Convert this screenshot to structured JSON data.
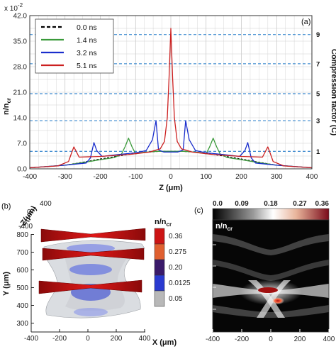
{
  "chart_data": [
    {
      "type": "line",
      "panel_label": "(a)",
      "y_multiplier": "x 10",
      "y_multiplier_exp": "-2",
      "xlabel": "Z (μm)",
      "ylabel": "n/n",
      "ylabel_sub": "cr",
      "y2label": "Compression factor (C)",
      "xlim": [
        -400,
        400
      ],
      "ylim": [
        0,
        42
      ],
      "xticks": [
        -400,
        -300,
        -200,
        -100,
        0,
        100,
        200,
        300,
        400
      ],
      "yticks": [
        0.0,
        7.0,
        14.0,
        21.0,
        28.0,
        35.0,
        42.0
      ],
      "ytick_labels": [
        "0.0",
        "7.0",
        "14.0",
        "21.0",
        "28.0",
        "35.0",
        "42.0"
      ],
      "grid": true,
      "legend_position": "top-left",
      "compression_levels": [
        {
          "label": "1",
          "y": 4.8
        },
        {
          "label": "3",
          "y": 13.2
        },
        {
          "label": "5",
          "y": 20.6
        },
        {
          "label": "7",
          "y": 28.8
        },
        {
          "label": "9",
          "y": 36.8
        }
      ],
      "series": [
        {
          "name": "0.0 ns",
          "color": "#000000",
          "dash": true,
          "x": [
            -400,
            -300,
            -250,
            -200,
            -150,
            -100,
            -60,
            -30,
            0,
            30,
            60,
            100,
            150,
            200,
            250,
            300,
            400
          ],
          "y": [
            0.3,
            1.0,
            1.8,
            2.7,
            3.5,
            4.2,
            4.6,
            4.8,
            4.8,
            4.8,
            4.6,
            4.2,
            3.5,
            2.7,
            1.8,
            1.0,
            0.3
          ]
        },
        {
          "name": "1.4 ns",
          "color": "#3a9a3a",
          "dash": false,
          "x": [
            -400,
            -300,
            -250,
            -200,
            -160,
            -140,
            -130,
            -120,
            -110,
            -100,
            -80,
            -40,
            0,
            40,
            80,
            100,
            110,
            120,
            130,
            140,
            160,
            200,
            250,
            300,
            400
          ],
          "y": [
            0.3,
            1.0,
            1.7,
            2.5,
            3.1,
            4.0,
            6.0,
            8.4,
            6.0,
            4.1,
            4.5,
            4.8,
            4.8,
            4.8,
            4.5,
            4.1,
            6.0,
            8.4,
            6.0,
            4.0,
            3.1,
            2.5,
            1.7,
            1.0,
            0.3
          ]
        },
        {
          "name": "3.2 ns",
          "color": "#1a2ecc",
          "dash": false,
          "x": [
            -400,
            -300,
            -240,
            -228,
            -218,
            -210,
            -195,
            -150,
            -100,
            -70,
            -52,
            -42,
            -35,
            -20,
            0,
            20,
            35,
            42,
            52,
            70,
            100,
            150,
            195,
            210,
            218,
            228,
            240,
            300,
            400
          ],
          "y": [
            0.3,
            1.0,
            1.6,
            3.0,
            7.2,
            5.0,
            3.4,
            3.9,
            4.4,
            5.0,
            8.0,
            13.2,
            5.2,
            4.6,
            4.6,
            4.6,
            5.2,
            13.2,
            8.0,
            5.0,
            4.4,
            3.9,
            3.4,
            5.0,
            7.2,
            3.0,
            1.6,
            1.0,
            0.3
          ]
        },
        {
          "name": "5.1 ns",
          "color": "#cc2020",
          "dash": false,
          "x": [
            -400,
            -320,
            -290,
            -282,
            -275,
            -260,
            -200,
            -120,
            -60,
            -30,
            -18,
            -10,
            -5,
            0,
            5,
            10,
            18,
            30,
            60,
            120,
            200,
            260,
            275,
            282,
            290,
            320,
            400
          ],
          "y": [
            0.3,
            0.8,
            2.0,
            4.2,
            6.0,
            3.2,
            3.4,
            3.9,
            4.6,
            5.5,
            7.5,
            14.0,
            25.0,
            38.5,
            25.0,
            14.0,
            7.5,
            5.5,
            4.6,
            3.9,
            3.4,
            3.2,
            6.0,
            4.2,
            2.0,
            0.8,
            0.3
          ]
        }
      ]
    },
    {
      "type": "3d-render",
      "panel_label": "(b)",
      "xlabel": "X (μm)",
      "ylabel": "Y (μm)",
      "zlabel": "Z(μm)",
      "xticks": [
        -400,
        -200,
        0,
        200,
        400
      ],
      "yticks": [
        300,
        400,
        500,
        600,
        700,
        800
      ],
      "zticks": [
        400,
        0,
        -400
      ],
      "colorbar_title": "n/n",
      "colorbar_title_sub": "cr",
      "colorbar": [
        {
          "label": "0.36",
          "color": "#cc1414"
        },
        {
          "label": "0.275",
          "color": "#e06030"
        },
        {
          "label": "0.20",
          "color": "#3a1a6a"
        },
        {
          "label": "0.0125",
          "color": "#2a3ad0"
        },
        {
          "label": "0.05",
          "color": "#b8b8b8"
        }
      ]
    },
    {
      "type": "heatmap",
      "panel_label": "(c)",
      "title": "n/n",
      "title_sub": "cr",
      "colorbar_ticks": [
        "0.0",
        "0.09",
        "0.18",
        "0.27",
        "0.36"
      ],
      "xticks": [
        -400,
        -200,
        0,
        200,
        400
      ],
      "xlabel": ""
    }
  ]
}
